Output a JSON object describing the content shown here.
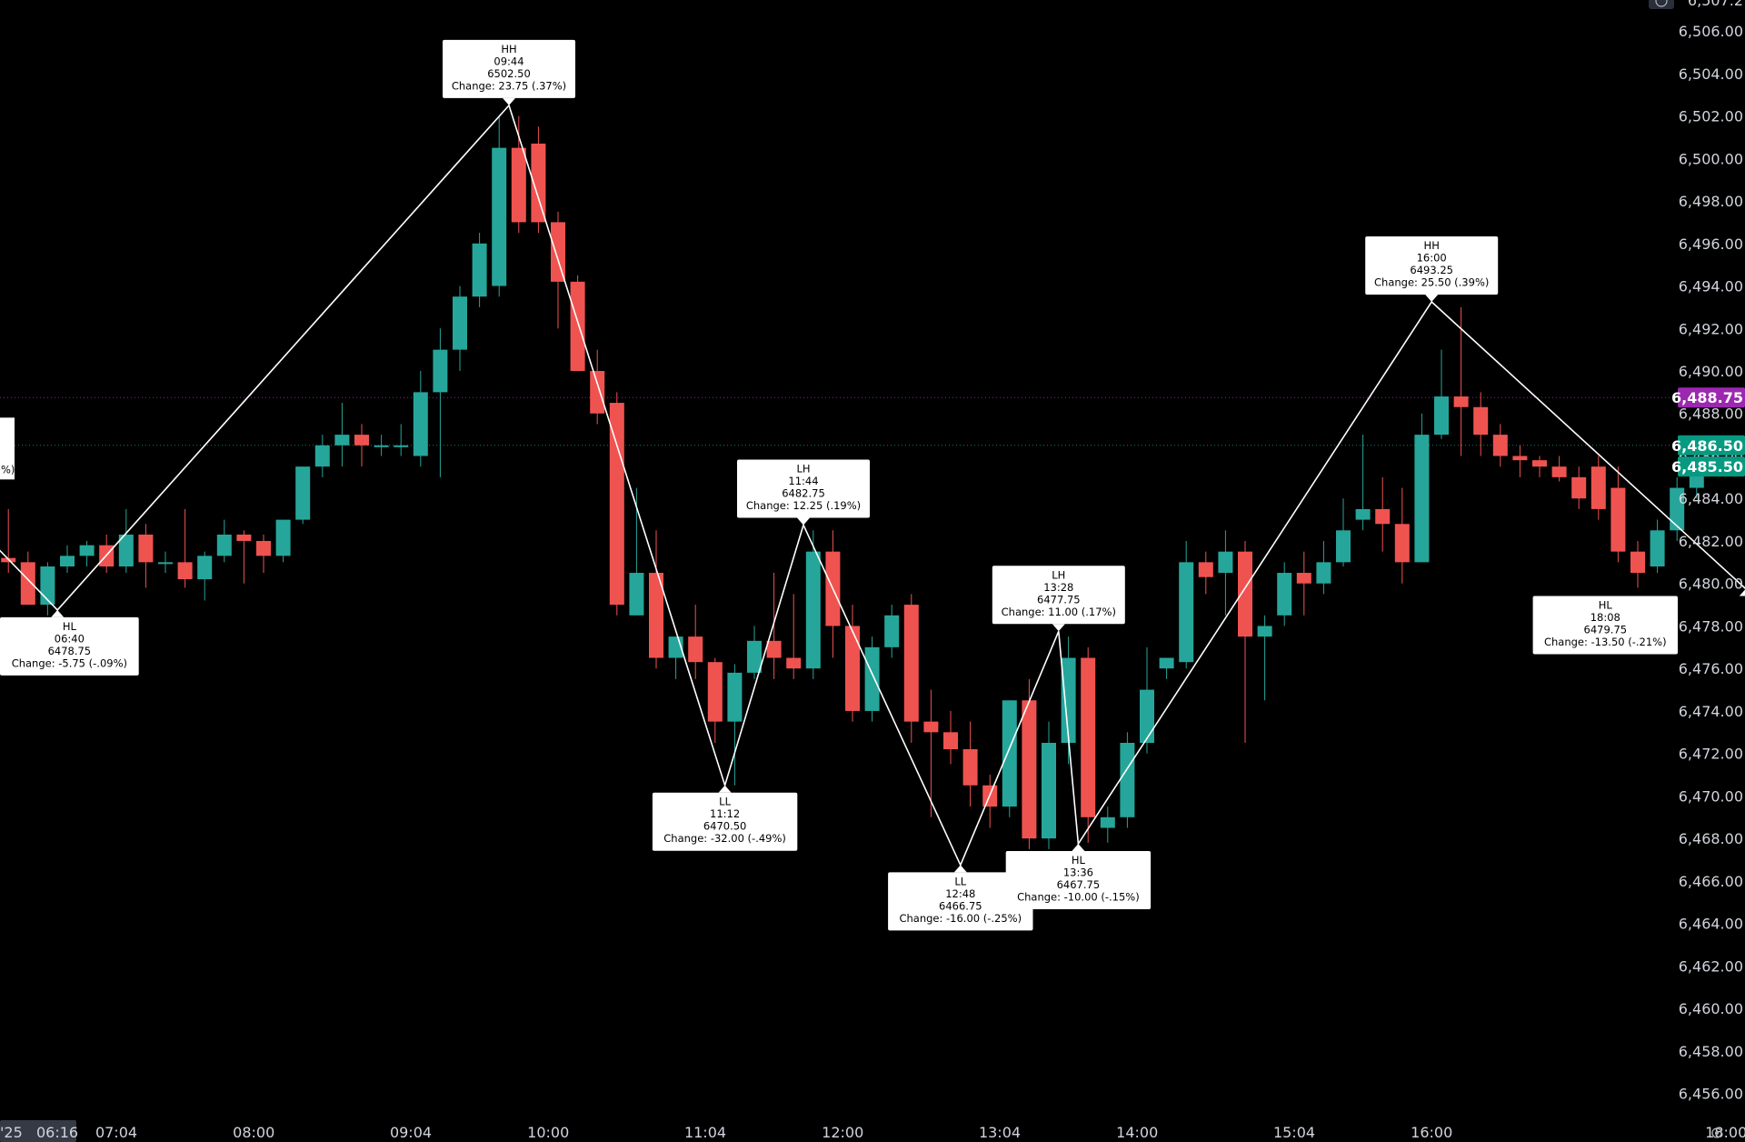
{
  "chart_data": {
    "type": "candlestick",
    "title": "",
    "xlabel": "",
    "ylabel": "",
    "ylim": [
      6455,
      6507.5
    ],
    "y_ticks": [
      "6,456.00",
      "6,458.00",
      "6,460.00",
      "6,462.00",
      "6,464.00",
      "6,466.00",
      "6,468.00",
      "6,470.00",
      "6,472.00",
      "6,474.00",
      "6,476.00",
      "6,478.00",
      "6,480.00",
      "6,482.00",
      "6,484.00",
      "6,486.00",
      "6,488.00",
      "6,490.00",
      "6,492.00",
      "6,494.00",
      "6,496.00",
      "6,498.00",
      "6,500.00",
      "6,502.00",
      "6,504.00",
      "6,506.00"
    ],
    "y_tick_values": [
      6456,
      6458,
      6460,
      6462,
      6464,
      6466,
      6468,
      6470,
      6472,
      6474,
      6476,
      6478,
      6480,
      6482,
      6484,
      6486,
      6488,
      6490,
      6492,
      6494,
      6496,
      6498,
      6500,
      6502,
      6504,
      6506
    ],
    "top_partial_label": "6,507.2",
    "x_ticks": [
      {
        "label": "07:04",
        "t": "07:04"
      },
      {
        "label": "08:00",
        "t": "08:00"
      },
      {
        "label": "09:04",
        "t": "09:04"
      },
      {
        "label": "10:00",
        "t": "10:00"
      },
      {
        "label": "11:04",
        "t": "11:04"
      },
      {
        "label": "12:00",
        "t": "12:00"
      },
      {
        "label": "13:04",
        "t": "13:04"
      },
      {
        "label": "14:00",
        "t": "14:00"
      },
      {
        "label": "15:04",
        "t": "15:04"
      },
      {
        "label": "16:00",
        "t": "16:00"
      },
      {
        "label": "18:00",
        "t": "18:00"
      }
    ],
    "crosshair_time": "06:16",
    "crosshair_date_partial": "'25",
    "price_tags": [
      {
        "label": "6,488.75",
        "value": 6488.75,
        "color": "#9c27b0"
      },
      {
        "label": "6,486.50",
        "value": 6486.5,
        "color": "#089981"
      },
      {
        "label": "6,485.50",
        "value": 6485.5,
        "color": "#089981"
      }
    ],
    "h_lines": [
      {
        "value": 6488.75,
        "color": "#9c27b0"
      },
      {
        "value": 6486.5,
        "color": "#089981"
      }
    ],
    "colors": {
      "up": "#26a69a",
      "down": "#ef5350",
      "zigzag": "#ffffff",
      "axis_text": "#d1d4dc"
    },
    "candles": [
      {
        "t": "05:56",
        "o": 6484.0,
        "h": 6484.5,
        "l": 6482.5,
        "c": 6482.8
      },
      {
        "t": "06:04",
        "o": 6482.8,
        "h": 6483.0,
        "l": 6481.0,
        "c": 6481.0
      },
      {
        "t": "06:12",
        "o": 6481.0,
        "h": 6482.0,
        "l": 6480.5,
        "c": 6481.2
      },
      {
        "t": "06:20",
        "o": 6481.2,
        "h": 6483.5,
        "l": 6480.5,
        "c": 6481.0
      },
      {
        "t": "06:28",
        "o": 6481.0,
        "h": 6481.5,
        "l": 6479.0,
        "c": 6479.0
      },
      {
        "t": "06:36",
        "o": 6479.0,
        "h": 6481.0,
        "l": 6478.5,
        "c": 6480.8
      },
      {
        "t": "06:44",
        "o": 6480.8,
        "h": 6481.8,
        "l": 6480.5,
        "c": 6481.3
      },
      {
        "t": "06:52",
        "o": 6481.3,
        "h": 6482.0,
        "l": 6480.8,
        "c": 6481.8
      },
      {
        "t": "07:00",
        "o": 6481.8,
        "h": 6482.3,
        "l": 6480.5,
        "c": 6480.8
      },
      {
        "t": "07:08",
        "o": 6480.8,
        "h": 6483.5,
        "l": 6480.5,
        "c": 6482.3
      },
      {
        "t": "07:16",
        "o": 6482.3,
        "h": 6482.8,
        "l": 6479.8,
        "c": 6481.0
      },
      {
        "t": "07:24",
        "o": 6481.0,
        "h": 6481.5,
        "l": 6480.5,
        "c": 6481.0
      },
      {
        "t": "07:32",
        "o": 6481.0,
        "h": 6483.5,
        "l": 6479.8,
        "c": 6480.2
      },
      {
        "t": "07:40",
        "o": 6480.2,
        "h": 6481.5,
        "l": 6479.2,
        "c": 6481.3
      },
      {
        "t": "07:48",
        "o": 6481.3,
        "h": 6483.0,
        "l": 6481.0,
        "c": 6482.3
      },
      {
        "t": "07:56",
        "o": 6482.3,
        "h": 6482.5,
        "l": 6480.0,
        "c": 6482.0
      },
      {
        "t": "08:04",
        "o": 6482.0,
        "h": 6482.3,
        "l": 6480.5,
        "c": 6481.3
      },
      {
        "t": "08:12",
        "o": 6481.3,
        "h": 6483.0,
        "l": 6481.0,
        "c": 6483.0
      },
      {
        "t": "08:20",
        "o": 6483.0,
        "h": 6485.5,
        "l": 6482.8,
        "c": 6485.5
      },
      {
        "t": "08:28",
        "o": 6485.5,
        "h": 6487.0,
        "l": 6485.0,
        "c": 6486.5
      },
      {
        "t": "08:36",
        "o": 6486.5,
        "h": 6488.5,
        "l": 6485.5,
        "c": 6487.0
      },
      {
        "t": "08:44",
        "o": 6487.0,
        "h": 6487.5,
        "l": 6485.5,
        "c": 6486.5
      },
      {
        "t": "08:52",
        "o": 6486.5,
        "h": 6487.0,
        "l": 6486.0,
        "c": 6486.5
      },
      {
        "t": "09:00",
        "o": 6486.5,
        "h": 6487.5,
        "l": 6486.0,
        "c": 6486.5
      },
      {
        "t": "09:08",
        "o": 6486.0,
        "h": 6490.0,
        "l": 6485.5,
        "c": 6489.0
      },
      {
        "t": "09:16",
        "o": 6489.0,
        "h": 6492.0,
        "l": 6485.0,
        "c": 6491.0
      },
      {
        "t": "09:24",
        "o": 6491.0,
        "h": 6494.0,
        "l": 6490.0,
        "c": 6493.5
      },
      {
        "t": "09:32",
        "o": 6493.5,
        "h": 6496.5,
        "l": 6493.0,
        "c": 6496.0
      },
      {
        "t": "09:40",
        "o": 6494.0,
        "h": 6502.0,
        "l": 6493.5,
        "c": 6500.5
      },
      {
        "t": "09:48",
        "o": 6500.5,
        "h": 6502.0,
        "l": 6496.5,
        "c": 6497.0
      },
      {
        "t": "09:56",
        "o": 6500.7,
        "h": 6501.5,
        "l": 6496.5,
        "c": 6497.0
      },
      {
        "t": "10:04",
        "o": 6497.0,
        "h": 6497.5,
        "l": 6492.0,
        "c": 6494.2
      },
      {
        "t": "10:12",
        "o": 6494.2,
        "h": 6494.5,
        "l": 6490.0,
        "c": 6490.0
      },
      {
        "t": "10:20",
        "o": 6490.0,
        "h": 6491.0,
        "l": 6487.5,
        "c": 6488.0
      },
      {
        "t": "10:28",
        "o": 6488.5,
        "h": 6489.0,
        "l": 6478.5,
        "c": 6479.0
      },
      {
        "t": "10:36",
        "o": 6478.5,
        "h": 6484.5,
        "l": 6478.5,
        "c": 6480.5
      },
      {
        "t": "10:44",
        "o": 6480.5,
        "h": 6482.5,
        "l": 6476.0,
        "c": 6476.5
      },
      {
        "t": "10:52",
        "o": 6476.5,
        "h": 6477.5,
        "l": 6475.5,
        "c": 6477.5
      },
      {
        "t": "11:00",
        "o": 6477.5,
        "h": 6479.0,
        "l": 6475.5,
        "c": 6476.3
      },
      {
        "t": "11:08",
        "o": 6476.3,
        "h": 6476.5,
        "l": 6472.5,
        "c": 6473.5
      },
      {
        "t": "11:16",
        "o": 6473.5,
        "h": 6476.2,
        "l": 6470.5,
        "c": 6475.8
      },
      {
        "t": "11:24",
        "o": 6475.8,
        "h": 6478.0,
        "l": 6475.5,
        "c": 6477.3
      },
      {
        "t": "11:32",
        "o": 6477.3,
        "h": 6480.5,
        "l": 6475.5,
        "c": 6476.5
      },
      {
        "t": "11:40",
        "o": 6476.5,
        "h": 6479.5,
        "l": 6475.5,
        "c": 6476.0
      },
      {
        "t": "11:48",
        "o": 6476.0,
        "h": 6482.5,
        "l": 6475.5,
        "c": 6481.5
      },
      {
        "t": "11:56",
        "o": 6481.5,
        "h": 6482.5,
        "l": 6476.5,
        "c": 6478.0
      },
      {
        "t": "12:04",
        "o": 6478.0,
        "h": 6479.0,
        "l": 6473.5,
        "c": 6474.0
      },
      {
        "t": "12:12",
        "o": 6474.0,
        "h": 6477.5,
        "l": 6473.5,
        "c": 6477.0
      },
      {
        "t": "12:20",
        "o": 6477.0,
        "h": 6479.0,
        "l": 6476.5,
        "c": 6478.5
      },
      {
        "t": "12:28",
        "o": 6479.0,
        "h": 6479.5,
        "l": 6472.5,
        "c": 6473.5
      },
      {
        "t": "12:36",
        "o": 6473.5,
        "h": 6475.0,
        "l": 6469.0,
        "c": 6473.0
      },
      {
        "t": "12:44",
        "o": 6473.0,
        "h": 6474.0,
        "l": 6471.5,
        "c": 6472.2
      },
      {
        "t": "12:52",
        "o": 6472.2,
        "h": 6473.5,
        "l": 6469.5,
        "c": 6470.5
      },
      {
        "t": "13:00",
        "o": 6470.5,
        "h": 6471.0,
        "l": 6468.5,
        "c": 6469.5
      },
      {
        "t": "13:08",
        "o": 6469.5,
        "h": 6474.5,
        "l": 6469.0,
        "c": 6474.5
      },
      {
        "t": "13:16",
        "o": 6474.5,
        "h": 6475.5,
        "l": 6467.5,
        "c": 6468.0
      },
      {
        "t": "13:24",
        "o": 6468.0,
        "h": 6473.5,
        "l": 6467.5,
        "c": 6472.5
      },
      {
        "t": "13:32",
        "o": 6472.5,
        "h": 6477.5,
        "l": 6471.5,
        "c": 6476.5
      },
      {
        "t": "13:40",
        "o": 6476.5,
        "h": 6477.0,
        "l": 6467.8,
        "c": 6469.0
      },
      {
        "t": "13:48",
        "o": 6468.5,
        "h": 6469.5,
        "l": 6467.8,
        "c": 6469.0
      },
      {
        "t": "13:56",
        "o": 6469.0,
        "h": 6473.0,
        "l": 6468.5,
        "c": 6472.5
      },
      {
        "t": "14:04",
        "o": 6472.5,
        "h": 6477.0,
        "l": 6472.0,
        "c": 6475.0
      },
      {
        "t": "14:12",
        "o": 6476.0,
        "h": 6476.5,
        "l": 6475.5,
        "c": 6476.5
      },
      {
        "t": "14:20",
        "o": 6476.3,
        "h": 6482.0,
        "l": 6476.0,
        "c": 6481.0
      },
      {
        "t": "14:28",
        "o": 6481.0,
        "h": 6481.5,
        "l": 6479.5,
        "c": 6480.3
      },
      {
        "t": "14:36",
        "o": 6480.5,
        "h": 6482.5,
        "l": 6478.5,
        "c": 6481.5
      },
      {
        "t": "14:44",
        "o": 6481.5,
        "h": 6482.0,
        "l": 6472.5,
        "c": 6477.5
      },
      {
        "t": "14:52",
        "o": 6477.5,
        "h": 6478.5,
        "l": 6474.5,
        "c": 6478.0
      },
      {
        "t": "15:00",
        "o": 6478.5,
        "h": 6481.0,
        "l": 6478.0,
        "c": 6480.5
      },
      {
        "t": "15:08",
        "o": 6480.5,
        "h": 6481.5,
        "l": 6478.5,
        "c": 6480.0
      },
      {
        "t": "15:16",
        "o": 6480.0,
        "h": 6482.0,
        "l": 6479.5,
        "c": 6481.0
      },
      {
        "t": "15:24",
        "o": 6481.0,
        "h": 6484.0,
        "l": 6480.8,
        "c": 6482.5
      },
      {
        "t": "15:32",
        "o": 6483.0,
        "h": 6487.0,
        "l": 6482.5,
        "c": 6483.5
      },
      {
        "t": "15:40",
        "o": 6483.5,
        "h": 6485.0,
        "l": 6481.5,
        "c": 6482.8
      },
      {
        "t": "15:48",
        "o": 6482.8,
        "h": 6484.5,
        "l": 6480.0,
        "c": 6481.0
      },
      {
        "t": "15:56",
        "o": 6481.0,
        "h": 6488.0,
        "l": 6481.0,
        "c": 6487.0
      },
      {
        "t": "16:04",
        "o": 6487.0,
        "h": 6491.0,
        "l": 6486.8,
        "c": 6488.8
      },
      {
        "t": "16:12",
        "o": 6488.8,
        "h": 6493.0,
        "l": 6486.0,
        "c": 6488.3
      },
      {
        "t": "16:20",
        "o": 6488.3,
        "h": 6489.0,
        "l": 6486.0,
        "c": 6487.0
      },
      {
        "t": "16:28",
        "o": 6487.0,
        "h": 6487.5,
        "l": 6485.5,
        "c": 6486.0
      },
      {
        "t": "16:36",
        "o": 6486.0,
        "h": 6486.5,
        "l": 6485.0,
        "c": 6485.8
      },
      {
        "t": "16:44",
        "o": 6485.8,
        "h": 6486.0,
        "l": 6485.0,
        "c": 6485.5
      },
      {
        "t": "16:52",
        "o": 6485.5,
        "h": 6486.0,
        "l": 6484.8,
        "c": 6485.0
      },
      {
        "t": "17:00",
        "o": 6485.0,
        "h": 6485.5,
        "l": 6483.5,
        "c": 6484.0
      },
      {
        "t": "17:08",
        "o": 6485.5,
        "h": 6486.0,
        "l": 6483.0,
        "c": 6483.5
      },
      {
        "t": "17:16",
        "o": 6484.5,
        "h": 6485.5,
        "l": 6481.0,
        "c": 6481.5
      },
      {
        "t": "17:24",
        "o": 6481.5,
        "h": 6482.0,
        "l": 6479.8,
        "c": 6480.5
      },
      {
        "t": "17:32",
        "o": 6480.8,
        "h": 6483.0,
        "l": 6480.5,
        "c": 6482.5
      },
      {
        "t": "17:40",
        "o": 6482.5,
        "h": 6485.0,
        "l": 6482.0,
        "c": 6484.5
      },
      {
        "t": "17:48",
        "o": 6484.5,
        "h": 6485.5,
        "l": 6484.0,
        "c": 6485.5
      }
    ],
    "zigzag": [
      {
        "label": "HL",
        "time": "06:40",
        "price": "6478.75",
        "change": "Change: -5.75 (-.09%)",
        "t": "06:40",
        "v": 6478.75,
        "pos": "below"
      },
      {
        "label": "HH",
        "time": "09:44",
        "price": "6502.50",
        "change": "Change: 23.75 (.37%)",
        "t": "09:44",
        "v": 6502.5,
        "pos": "above"
      },
      {
        "label": "LL",
        "time": "11:12",
        "price": "6470.50",
        "change": "Change: -32.00 (-.49%)",
        "t": "11:12",
        "v": 6470.5,
        "pos": "below"
      },
      {
        "label": "LH",
        "time": "11:44",
        "price": "6482.75",
        "change": "Change: 12.25 (.19%)",
        "t": "11:44",
        "v": 6482.75,
        "pos": "above"
      },
      {
        "label": "LL",
        "time": "12:48",
        "price": "6466.75",
        "change": "Change: -16.00 (-.25%)",
        "t": "12:48",
        "v": 6466.75,
        "pos": "below"
      },
      {
        "label": "LH",
        "time": "13:28",
        "price": "6477.75",
        "change": "Change: 11.00 (.17%)",
        "t": "13:28",
        "v": 6477.75,
        "pos": "above"
      },
      {
        "label": "HL",
        "time": "13:36",
        "price": "6467.75",
        "change": "Change: -10.00 (-.15%)",
        "t": "13:36",
        "v": 6467.75,
        "pos": "below"
      },
      {
        "label": "HH",
        "time": "16:00",
        "price": "6493.25",
        "change": "Change: 25.50 (.39%)",
        "t": "16:00",
        "v": 6493.25,
        "pos": "above"
      },
      {
        "label": "HL",
        "time": "18:08",
        "price": "6479.75",
        "change": "Change: -13.50 (-.21%)",
        "t": "18:08",
        "v": 6479.75,
        "pos": "below"
      }
    ],
    "zigzag_start": {
      "t": "05:56",
      "v": 6484.0
    },
    "zigzag_end": {
      "t": "18:14",
      "v": 6482.5
    },
    "left_cut_label": {
      "text": "%)",
      "t": "05:50",
      "v": 6485.75
    }
  }
}
